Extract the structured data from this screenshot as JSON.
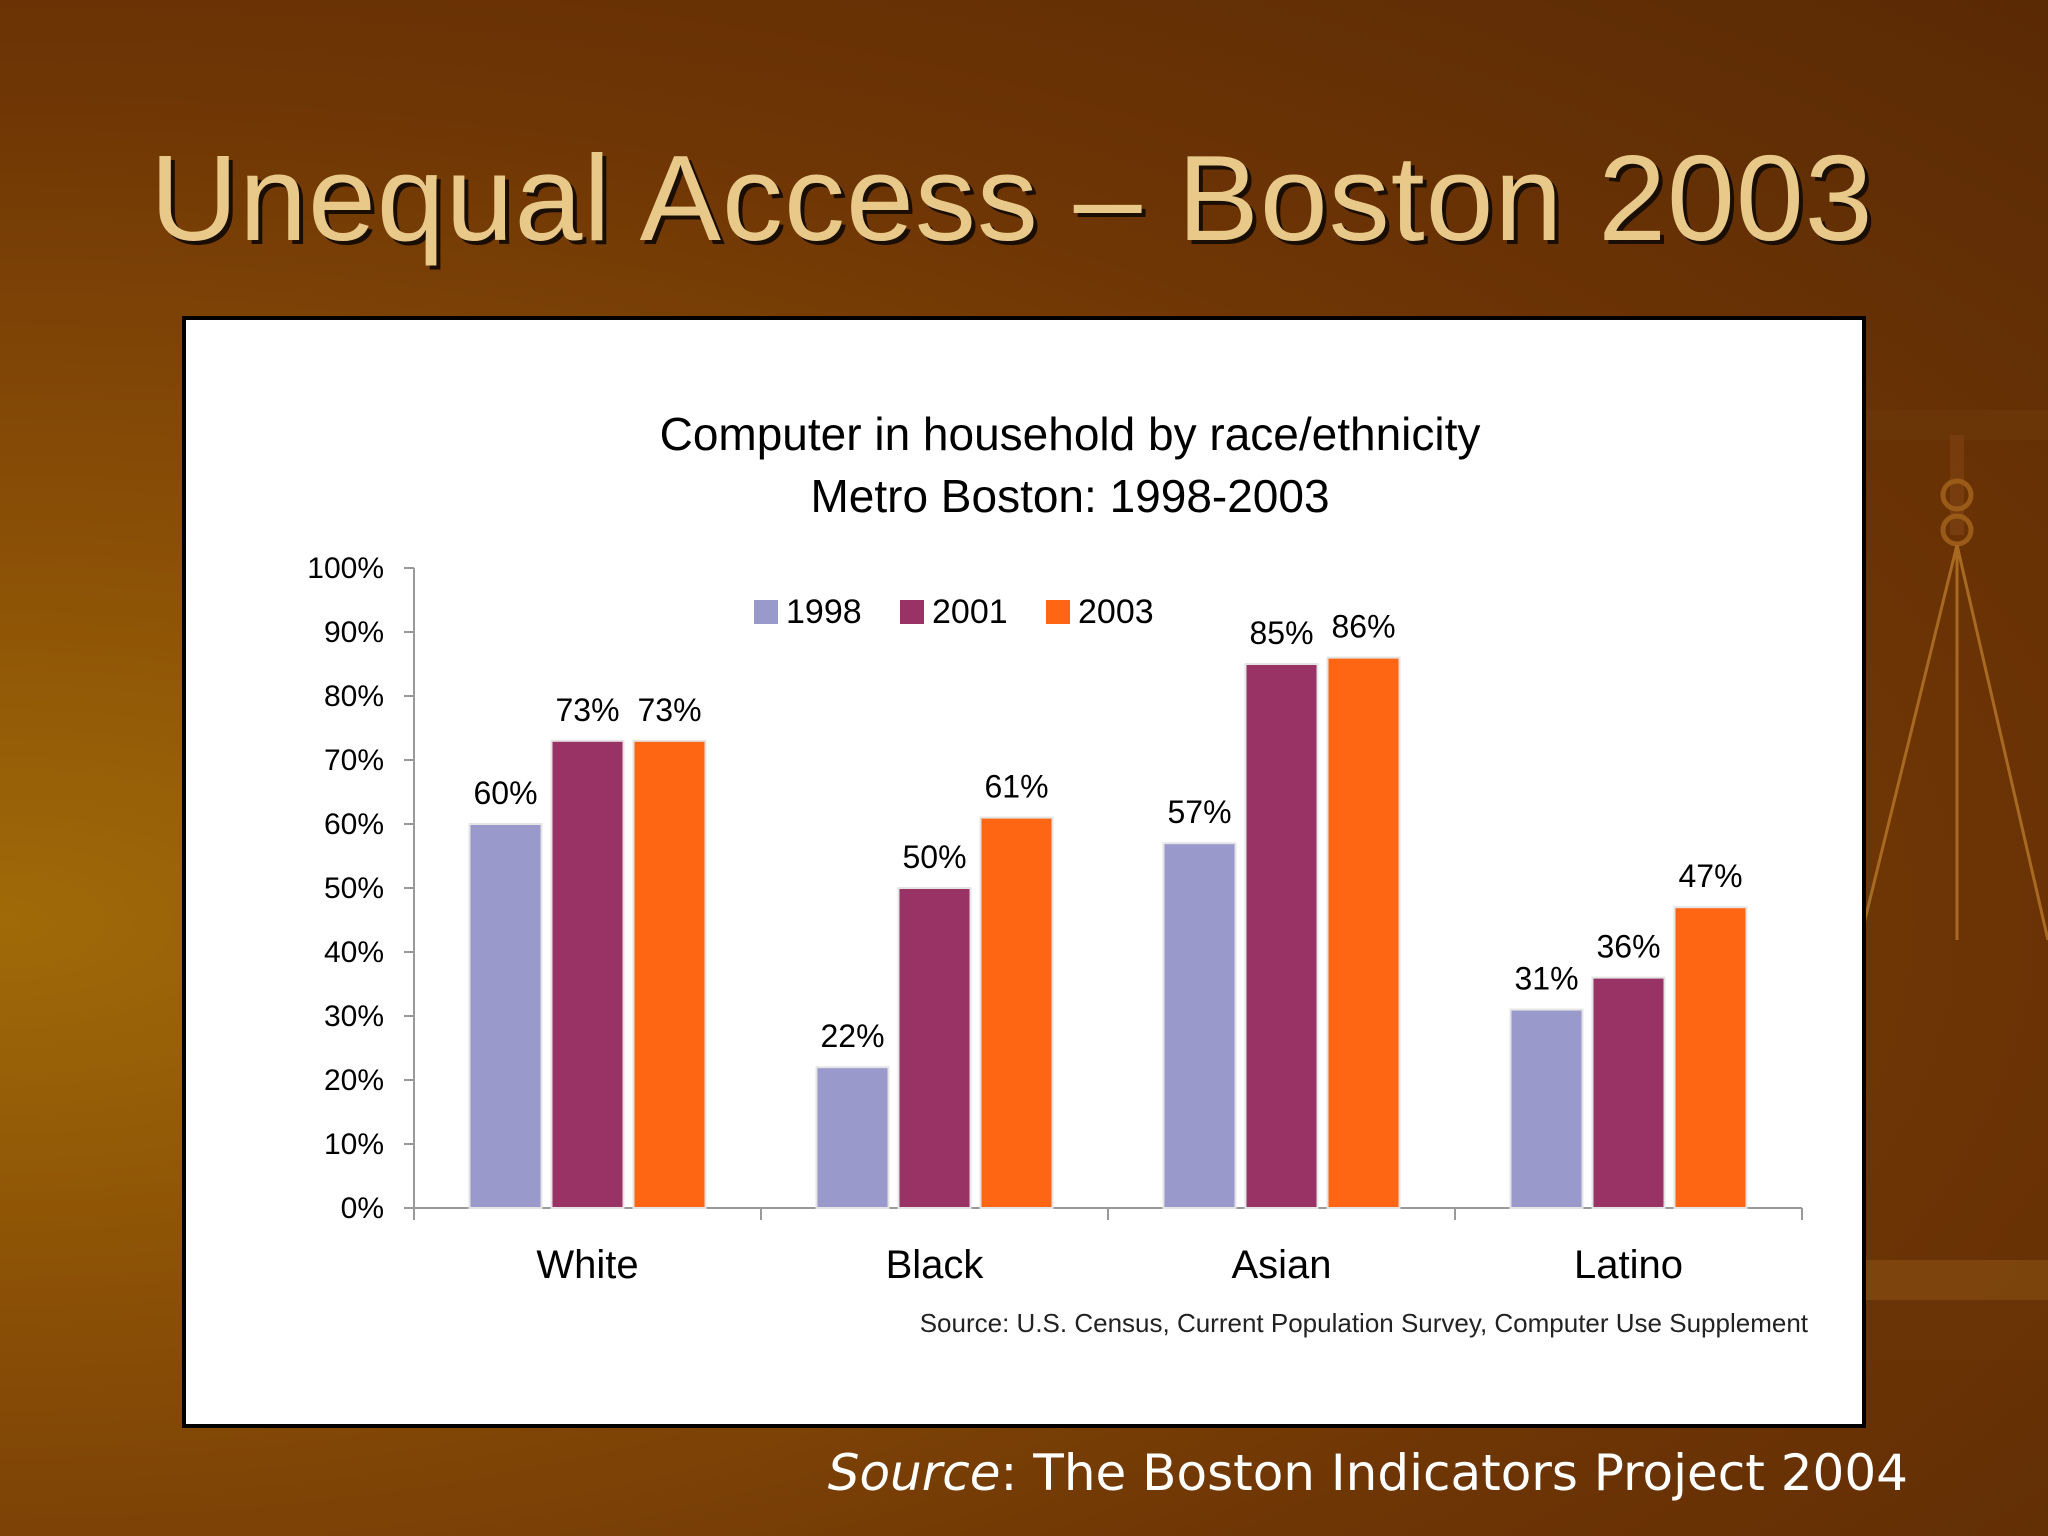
{
  "slide": {
    "title": "Unequal Access – Boston 2003",
    "footer_source_label": "Source",
    "footer_source_text": ": The Boston Indicators Project 2004"
  },
  "chart_data": {
    "type": "bar",
    "title": "Computer in household by race/ethnicity",
    "subtitle": "Metro Boston: 1998-2003",
    "categories": [
      "White",
      "Black",
      "Asian",
      "Latino"
    ],
    "series": [
      {
        "name": "1998",
        "values": [
          60,
          22,
          57,
          31
        ],
        "labels": [
          "60%",
          "22%",
          "57%",
          "31%"
        ],
        "color": "#9999cc"
      },
      {
        "name": "2001",
        "values": [
          73,
          50,
          85,
          36
        ],
        "labels": [
          "73%",
          "50%",
          "85%",
          "36%"
        ],
        "color": "#993366"
      },
      {
        "name": "2003",
        "values": [
          73,
          61,
          86,
          47
        ],
        "labels": [
          "73%",
          "61%",
          "86%",
          "47%"
        ],
        "color": "#ff6614"
      }
    ],
    "ylim": [
      0,
      100
    ],
    "yticks": [
      "0%",
      "10%",
      "20%",
      "30%",
      "40%",
      "50%",
      "60%",
      "70%",
      "80%",
      "90%",
      "100%"
    ],
    "grid": false,
    "legend_position": "top-center",
    "source_note": "Source: U.S. Census, Current Population Survey, Computer Use Supplement"
  }
}
